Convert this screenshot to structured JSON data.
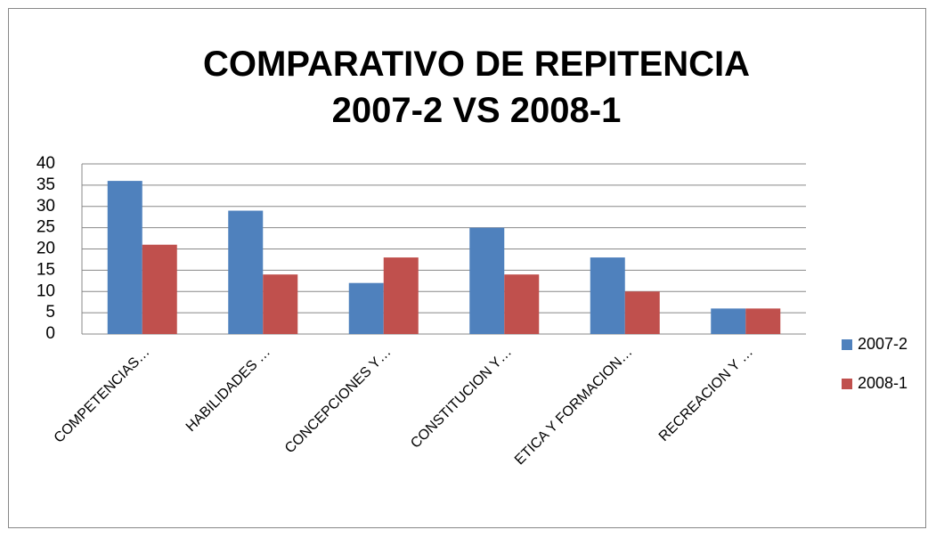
{
  "chart_data": {
    "type": "bar",
    "title": "COMPARATIVO DE REPITENCIA\n2007-2 VS 2008-1",
    "categories": [
      "COMPETENCIAS…",
      "HABILIDADES …",
      "CONCEPCIONES Y…",
      "CONSTITUCION Y…",
      "ETICA Y FORMACION…",
      "RECREACION Y …"
    ],
    "series": [
      {
        "name": "2007-2",
        "color": "#4f81bd",
        "values": [
          36,
          29,
          12,
          25,
          18,
          6
        ]
      },
      {
        "name": "2008-1",
        "color": "#c0504d",
        "values": [
          21,
          14,
          18,
          14,
          10,
          6
        ]
      }
    ],
    "ylim": [
      0,
      40
    ],
    "yticks": [
      0,
      5,
      10,
      15,
      20,
      25,
      30,
      35,
      40
    ],
    "grid": true,
    "legend": "right"
  }
}
